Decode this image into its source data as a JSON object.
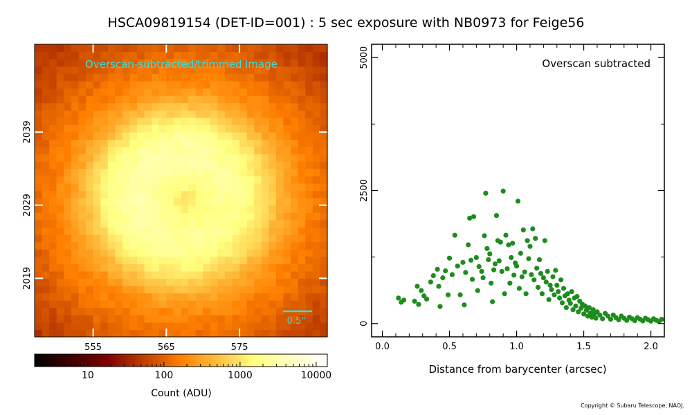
{
  "title": "HSCA09819154 (DET-ID=001) :  5 sec exposure with NB0973 for Feige56",
  "copyright": "Copyright © Subaru Telescope, NAOJ.",
  "colors": {
    "image_overlay_text": "#33e0e0",
    "scatter_points": "#1e8c1e",
    "frame": "#000000"
  },
  "chart_data": [
    {
      "type": "heatmap",
      "annotation": "Overscan-subtracted/trimmed image",
      "scale_bar_label": "0.5\"",
      "x_ticks": [
        "555",
        "565",
        "575"
      ],
      "y_ticks": [
        "2039",
        "2029",
        "2019"
      ],
      "x_tick_values": [
        555,
        565,
        575
      ],
      "y_tick_values": [
        2039,
        2029,
        2019
      ],
      "xlim": [
        547,
        587
      ],
      "ylim": [
        2011,
        2051
      ],
      "grid": false,
      "colorbar": {
        "label": "Count (ADU)",
        "scale": "log",
        "range": [
          2,
          14000
        ],
        "tick_labels": [
          "10",
          "100",
          "1000",
          "10000"
        ],
        "tick_values": [
          10,
          100,
          1000,
          10000
        ],
        "colormap": "afmhot"
      },
      "source": {
        "center_x": 567.2,
        "center_y": 2030,
        "ring_radius_px": 6.2,
        "peak_adu": 2500,
        "background_adu": 38
      }
    },
    {
      "type": "scatter",
      "annotation": "Overscan subtracted",
      "xlabel": "Distance from barycenter (arcsec)",
      "ylabel": "",
      "x_tick_labels": [
        "0.0",
        "0.5",
        "1.0",
        "1.5",
        "2.0"
      ],
      "x_tick_values": [
        0,
        0.5,
        1.0,
        1.5,
        2.0
      ],
      "y_tick_labels": [
        "0",
        "2500",
        "5000"
      ],
      "y_tick_values": [
        0,
        2500,
        5000
      ],
      "xlim": [
        -0.08,
        2.1
      ],
      "ylim": [
        -250,
        5250
      ],
      "grid": false,
      "series": [
        {
          "points": [
            [
              0.12,
              480
            ],
            [
              0.14,
              400
            ],
            [
              0.16,
              440
            ],
            [
              0.24,
              420
            ],
            [
              0.26,
              700
            ],
            [
              0.27,
              360
            ],
            [
              0.29,
              620
            ],
            [
              0.31,
              520
            ],
            [
              0.33,
              460
            ],
            [
              0.36,
              780
            ],
            [
              0.38,
              900
            ],
            [
              0.41,
              1020
            ],
            [
              0.42,
              700
            ],
            [
              0.43,
              320
            ],
            [
              0.45,
              860
            ],
            [
              0.47,
              990
            ],
            [
              0.49,
              540
            ],
            [
              0.5,
              1230
            ],
            [
              0.52,
              920
            ],
            [
              0.54,
              1660
            ],
            [
              0.56,
              1080
            ],
            [
              0.58,
              540
            ],
            [
              0.6,
              1150
            ],
            [
              0.61,
              350
            ],
            [
              0.62,
              960
            ],
            [
              0.64,
              1480
            ],
            [
              0.65,
              1980
            ],
            [
              0.66,
              1190
            ],
            [
              0.67,
              830
            ],
            [
              0.68,
              2010
            ],
            [
              0.7,
              1240
            ],
            [
              0.71,
              620
            ],
            [
              0.72,
              1070
            ],
            [
              0.74,
              980
            ],
            [
              0.75,
              860
            ],
            [
              0.76,
              1650
            ],
            [
              0.77,
              2450
            ],
            [
              0.78,
              1410
            ],
            [
              0.79,
              1200
            ],
            [
              0.8,
              1310
            ],
            [
              0.81,
              760
            ],
            [
              0.82,
              410
            ],
            [
              0.83,
              1010
            ],
            [
              0.84,
              1120
            ],
            [
              0.85,
              2030
            ],
            [
              0.86,
              1560
            ],
            [
              0.87,
              1180
            ],
            [
              0.88,
              1530
            ],
            [
              0.89,
              980
            ],
            [
              0.9,
              2490
            ],
            [
              0.91,
              560
            ],
            [
              0.92,
              1660
            ],
            [
              0.93,
              1030
            ],
            [
              0.94,
              1480
            ],
            [
              0.95,
              760
            ],
            [
              0.96,
              1240
            ],
            [
              0.97,
              1510
            ],
            [
              0.98,
              910
            ],
            [
              0.99,
              1140
            ],
            [
              1.0,
              1080
            ],
            [
              1.01,
              2300
            ],
            [
              1.02,
              660
            ],
            [
              1.03,
              1320
            ],
            [
              1.04,
              880
            ],
            [
              1.05,
              1760
            ],
            [
              1.06,
              970
            ],
            [
              1.07,
              560
            ],
            [
              1.08,
              1560
            ],
            [
              1.09,
              1220
            ],
            [
              1.1,
              1450
            ],
            [
              1.11,
              920
            ],
            [
              1.12,
              1780
            ],
            [
              1.13,
              820
            ],
            [
              1.14,
              1600
            ],
            [
              1.15,
              1040
            ],
            [
              1.16,
              680
            ],
            [
              1.17,
              1200
            ],
            [
              1.18,
              940
            ],
            [
              1.19,
              560
            ],
            [
              1.2,
              860
            ],
            [
              1.21,
              1560
            ],
            [
              1.22,
              780
            ],
            [
              1.23,
              980
            ],
            [
              1.24,
              450
            ],
            [
              1.25,
              720
            ],
            [
              1.26,
              640
            ],
            [
              1.27,
              880
            ],
            [
              1.28,
              540
            ],
            [
              1.29,
              1000
            ],
            [
              1.3,
              720
            ],
            [
              1.31,
              600
            ],
            [
              1.32,
              480
            ],
            [
              1.33,
              820
            ],
            [
              1.34,
              390
            ],
            [
              1.35,
              660
            ],
            [
              1.36,
              520
            ],
            [
              1.37,
              300
            ],
            [
              1.38,
              560
            ],
            [
              1.39,
              440
            ],
            [
              1.4,
              380
            ],
            [
              1.41,
              600
            ],
            [
              1.42,
              260
            ],
            [
              1.43,
              480
            ],
            [
              1.44,
              330
            ],
            [
              1.45,
              510
            ],
            [
              1.46,
              220
            ],
            [
              1.47,
              420
            ],
            [
              1.48,
              290
            ],
            [
              1.49,
              360
            ],
            [
              1.5,
              180
            ],
            [
              1.51,
              330
            ],
            [
              1.52,
              250
            ],
            [
              1.53,
              140
            ],
            [
              1.54,
              300
            ],
            [
              1.55,
              200
            ],
            [
              1.56,
              120
            ],
            [
              1.57,
              260
            ],
            [
              1.58,
              180
            ],
            [
              1.59,
              100
            ],
            [
              1.6,
              220
            ],
            [
              1.62,
              160
            ],
            [
              1.64,
              90
            ],
            [
              1.66,
              190
            ],
            [
              1.68,
              140
            ],
            [
              1.7,
              80
            ],
            [
              1.72,
              160
            ],
            [
              1.74,
              110
            ],
            [
              1.76,
              70
            ],
            [
              1.78,
              140
            ],
            [
              1.8,
              100
            ],
            [
              1.82,
              60
            ],
            [
              1.84,
              120
            ],
            [
              1.86,
              90
            ],
            [
              1.88,
              55
            ],
            [
              1.9,
              110
            ],
            [
              1.92,
              80
            ],
            [
              1.94,
              50
            ],
            [
              1.96,
              100
            ],
            [
              1.98,
              70
            ],
            [
              2.0,
              45
            ],
            [
              2.02,
              90
            ],
            [
              2.04,
              60
            ],
            [
              2.06,
              40
            ],
            [
              2.08,
              80
            ]
          ]
        }
      ]
    }
  ]
}
